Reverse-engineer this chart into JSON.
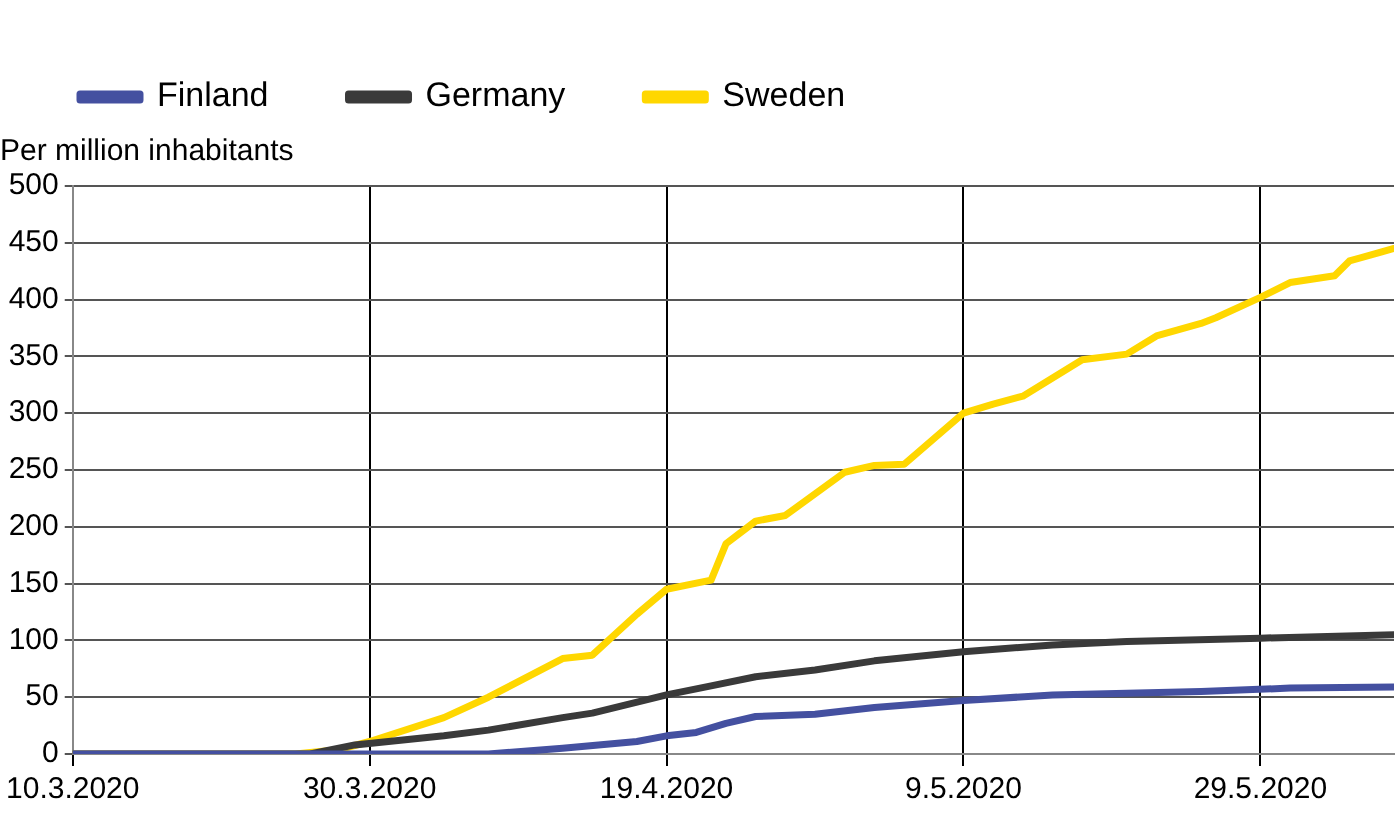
{
  "chart_data": {
    "type": "line",
    "ylabel": "Per million inhabitants",
    "xlim": [
      "2020-03-10",
      "2020-06-07"
    ],
    "xticks": [
      {
        "value": "2020-03-10",
        "label": "10.3.2020"
      },
      {
        "value": "2020-03-30",
        "label": "30.3.2020"
      },
      {
        "value": "2020-04-19",
        "label": "19.4.2020"
      },
      {
        "value": "2020-05-09",
        "label": "9.5.2020"
      },
      {
        "value": "2020-05-29",
        "label": "29.5.2020"
      }
    ],
    "ylim": [
      0,
      500
    ],
    "yticks": [
      0,
      50,
      100,
      150,
      200,
      250,
      300,
      350,
      400,
      450,
      500
    ],
    "grid": true,
    "legend": "top left",
    "marker": "none",
    "line_style": "solid",
    "series": [
      {
        "name": "Finland",
        "color": "#4450a0",
        "x": [
          "2020-03-10",
          "2020-04-07",
          "2020-04-12",
          "2020-04-17",
          "2020-04-19",
          "2020-04-21",
          "2020-04-23",
          "2020-04-25",
          "2020-04-29",
          "2020-05-03",
          "2020-05-09",
          "2020-05-15",
          "2020-05-25",
          "2020-05-31",
          "2020-06-07"
        ],
        "values": [
          0,
          0,
          5,
          11,
          16,
          19,
          27,
          33,
          35,
          41,
          47,
          52,
          55,
          58,
          59
        ]
      },
      {
        "name": "Germany",
        "color": "#3a3a3a",
        "x": [
          "2020-03-10",
          "2020-03-26",
          "2020-03-29",
          "2020-04-04",
          "2020-04-07",
          "2020-04-12",
          "2020-04-14",
          "2020-04-19",
          "2020-04-22",
          "2020-04-25",
          "2020-04-29",
          "2020-05-03",
          "2020-05-09",
          "2020-05-15",
          "2020-05-20",
          "2020-05-29",
          "2020-06-07"
        ],
        "values": [
          0,
          0,
          8,
          16,
          21,
          32,
          36,
          52,
          60,
          68,
          74,
          82,
          90,
          96,
          99,
          102,
          105
        ]
      },
      {
        "name": "Sweden",
        "color": "#ffd700",
        "x": [
          "2020-03-10",
          "2020-03-25",
          "2020-03-28",
          "2020-03-30",
          "2020-04-04",
          "2020-04-07",
          "2020-04-12",
          "2020-04-14",
          "2020-04-17",
          "2020-04-19",
          "2020-04-22",
          "2020-04-23",
          "2020-04-25",
          "2020-04-27",
          "2020-05-01",
          "2020-05-03",
          "2020-05-05",
          "2020-05-09",
          "2020-05-11",
          "2020-05-13",
          "2020-05-17",
          "2020-05-20",
          "2020-05-22",
          "2020-05-25",
          "2020-05-26",
          "2020-05-29",
          "2020-05-31",
          "2020-06-03",
          "2020-06-04",
          "2020-06-07"
        ],
        "values": [
          0,
          0,
          4,
          11,
          32,
          50,
          84,
          87,
          123,
          145,
          153,
          185,
          205,
          210,
          248,
          254,
          255,
          300,
          308,
          315,
          347,
          352,
          368,
          379,
          384,
          402,
          415,
          421,
          434,
          445
        ]
      }
    ]
  }
}
